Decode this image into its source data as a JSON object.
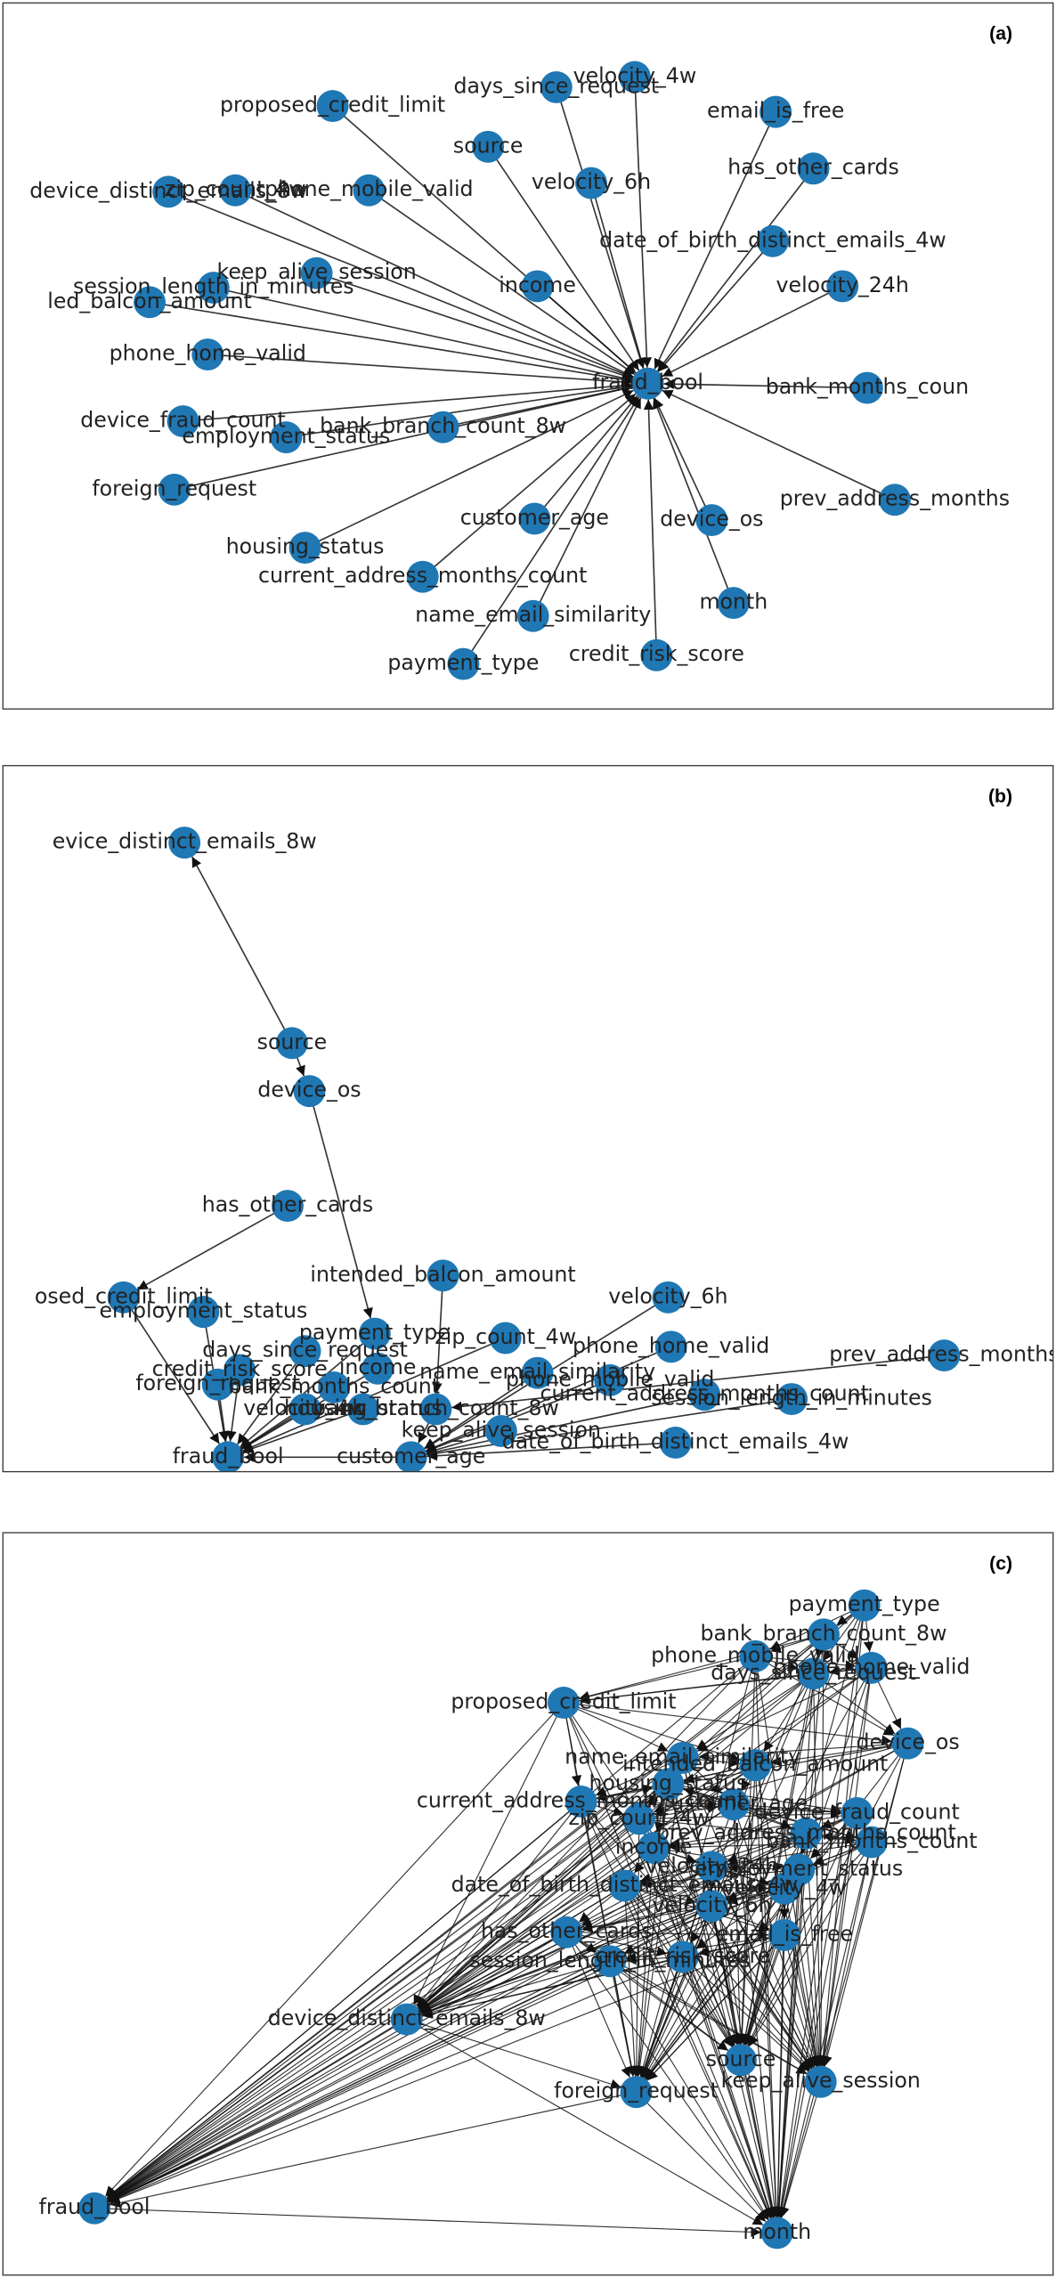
{
  "panels": [
    {
      "label": "(a)",
      "nodes": [
        "fraud_bool",
        "velocity_4w",
        "days_since_request",
        "proposed_credit_limit",
        "email_is_free",
        "source",
        "device_distinct_emails_8w",
        "zip_count_4w",
        "phone_mobile_valid",
        "velocity_6h",
        "has_other_cards",
        "date_of_birth_distinct_emails_4w",
        "keep_alive_session",
        "session_length_in_minutes",
        "income",
        "velocity_24h",
        "led_balcon_amount",
        "phone_home_valid",
        "bank_months_coun",
        "device_fraud_count",
        "employment_status",
        "bank_branch_count_8w",
        "foreign_request",
        "prev_address_months",
        "customer_age",
        "device_os",
        "housing_status",
        "current_address_months_count",
        "month",
        "name_email_similarity",
        "credit_risk_score",
        "payment_type"
      ]
    },
    {
      "label": "(b)",
      "nodes": [
        "fraud_bool",
        "evice_distinct_emails_8w",
        "source",
        "device_os",
        "has_other_cards",
        "intended_balcon_amount",
        "velocity_6h",
        "osed_credit_limit",
        "employment_status",
        "payment_type",
        "zip_count_4w",
        "phone_home_valid",
        "prev_address_months",
        "days_since_request",
        "credit_risk_score",
        "income",
        "name_email_similarity",
        "phone_mobile_valid",
        "foreign_request",
        "bank_months_count",
        "current_address_months_count",
        "session_length_in_minutes",
        "velocity_4w",
        "housing_status",
        "bank_branch_count_8w",
        "keep_alive_session",
        "date_of_birth_distinct_emails_4w",
        "customer_age"
      ]
    },
    {
      "label": "(c)",
      "nodes": [
        "fraud_bool",
        "month",
        "foreign_request",
        "source",
        "keep_alive_session",
        "device_distinct_emails_8w",
        "payment_type",
        "bank_branch_count_8w",
        "phone_mobile_valid",
        "phone_home_valid",
        "days_since_request",
        "proposed_credit_limit",
        "device_os",
        "name_email_similarity",
        "intended_balcon_amount",
        "current_address_months_count",
        "zip_count_4w",
        "customer_age",
        "housing_status",
        "device_fraud_count",
        "bank_months_count",
        "prev_address_months_count",
        "income",
        "employment_status",
        "velocity_24h",
        "date_of_birth_distinct_emails_4w",
        "velocity_4w",
        "velocity_6h",
        "has_other_cards",
        "email_is_free",
        "credit_risk_score",
        "session_length_in_minutes"
      ]
    }
  ]
}
